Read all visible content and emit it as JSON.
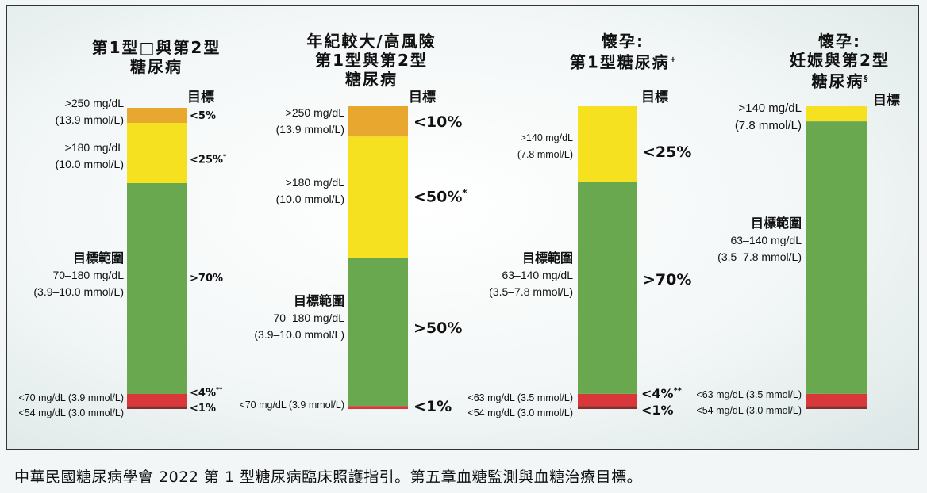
{
  "caption": "中華民國糖尿病學會 2022 第 1 型糖尿病臨床照護指引。第五章血糖監測與血糖治療目標。",
  "target_header": "目標",
  "chart_data": [
    {
      "type": "stacked-bar",
      "title_lines": [
        "第1型□與第2型",
        "糖尿病"
      ],
      "segments": [
        {
          "name": "<54",
          "share": 1,
          "color": "#8b2b2b"
        },
        {
          "name": "<70",
          "share": 4,
          "color": "#d9383a"
        },
        {
          "name": "target",
          "share": 70,
          "color": "#6aa84f"
        },
        {
          "name": ">180",
          "share": 20,
          "color": "#f5e11f"
        },
        {
          "name": ">250",
          "share": 5,
          "color": "#e8a830"
        }
      ],
      "labels": {
        "gt250_a": ">250 mg/dL",
        "gt250_b": "(13.9 mmol/L)",
        "gt180_a": ">180 mg/dL",
        "gt180_b": "(10.0 mmol/L)",
        "range_title": "目標範圍",
        "range_a": "70–180 mg/dL",
        "range_b": "(3.9–10.0 mmol/L)",
        "lt70": "<70 mg/dL (3.9 mmol/L)",
        "lt54": "<54 mg/dL (3.0 mmol/L)"
      },
      "targets": {
        "gt250": "<5%",
        "gt180": "<25%",
        "gt180_note": "*",
        "range": ">70%",
        "lt70": "<4%",
        "lt70_note": "**",
        "lt54": "<1%"
      }
    },
    {
      "type": "stacked-bar",
      "title_lines": [
        "年紀較大/高風險",
        "第1型與第2型",
        "糖尿病"
      ],
      "segments": [
        {
          "name": "<70",
          "share": 1,
          "color": "#d9383a"
        },
        {
          "name": "target",
          "share": 49,
          "color": "#6aa84f"
        },
        {
          "name": ">180",
          "share": 40,
          "color": "#f5e11f"
        },
        {
          "name": ">250",
          "share": 10,
          "color": "#e8a830"
        }
      ],
      "labels": {
        "gt250_a": ">250 mg/dL",
        "gt250_b": "(13.9 mmol/L)",
        "gt180_a": ">180 mg/dL",
        "gt180_b": "(10.0 mmol/L)",
        "range_title": "目標範圍",
        "range_a": "70–180 mg/dL",
        "range_b": "(3.9–10.0 mmol/L)",
        "lt70": "<70 mg/dL (3.9 mmol/L)"
      },
      "targets": {
        "gt250": "<10%",
        "gt180": "<50%",
        "gt180_note": "*",
        "range": ">50%",
        "lt70": "<1%"
      }
    },
    {
      "type": "stacked-bar",
      "title_lines": [
        "懷孕:",
        "第1型糖尿病"
      ],
      "title_note": "+",
      "segments": [
        {
          "name": "<54",
          "share": 1,
          "color": "#8b2b2b"
        },
        {
          "name": "<63",
          "share": 4,
          "color": "#d9383a"
        },
        {
          "name": "target",
          "share": 70,
          "color": "#6aa84f"
        },
        {
          "name": ">140",
          "share": 25,
          "color": "#f5e11f"
        }
      ],
      "labels": {
        "gt140_a": ">140 mg/dL",
        "gt140_b": "(7.8 mmol/L)",
        "range_title": "目標範圍",
        "range_a": "63–140 mg/dL",
        "range_b": "(3.5–7.8 mmol/L)",
        "lt63": "<63 mg/dL (3.5 mmol/L)",
        "lt54": "<54 mg/dL (3.0 mmol/L)"
      },
      "targets": {
        "gt140": "<25%",
        "range": ">70%",
        "lt63": "<4%",
        "lt63_note": "**",
        "lt54": "<1%"
      }
    },
    {
      "type": "stacked-bar",
      "title_lines": [
        "懷孕:",
        "妊娠與第2型",
        "糖尿病"
      ],
      "title_note": "§",
      "segments": [
        {
          "name": "<54",
          "share": 1,
          "color": "#8b2b2b"
        },
        {
          "name": "<63",
          "share": 4,
          "color": "#d9383a"
        },
        {
          "name": "target",
          "share": 90,
          "color": "#6aa84f"
        },
        {
          "name": ">140",
          "share": 5,
          "color": "#f5e11f"
        }
      ],
      "labels": {
        "gt140_a": ">140 mg/dL",
        "gt140_b": "(7.8 mmol/L)",
        "range_title": "目標範圍",
        "range_a": "63–140 mg/dL",
        "range_b": "(3.5–7.8 mmol/L)",
        "lt63": "<63 mg/dL (3.5 mmol/L)",
        "lt54": "<54 mg/dL (3.0 mmol/L)"
      },
      "targets": {}
    }
  ]
}
